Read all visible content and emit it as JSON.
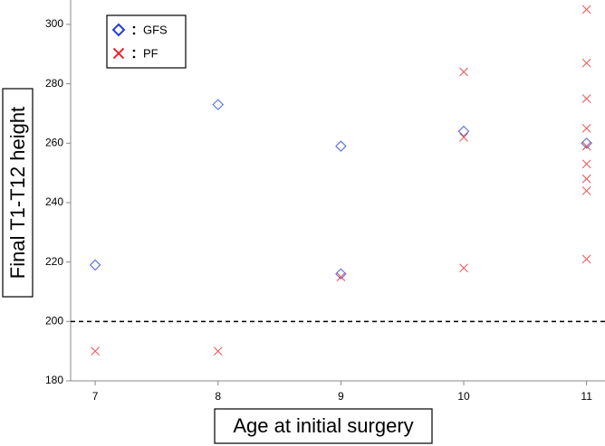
{
  "chart_data": {
    "type": "scatter",
    "x_label": "Age at initial surgery",
    "y_label": "Final T1-T12 height",
    "xlim": [
      6.8,
      11.15
    ],
    "ylim": [
      180,
      308.2
    ],
    "xticks": [
      7,
      8,
      9,
      10,
      11
    ],
    "yticks": [
      180,
      200,
      220,
      240,
      260,
      280,
      300
    ],
    "reference_line": {
      "y": 200,
      "style": "dashed",
      "color": "#000000"
    },
    "legend": "upper-left",
    "series": [
      {
        "name": "GFS",
        "color": "#1f3fd6",
        "marker": "diamond",
        "x": [
          7,
          8,
          9,
          9,
          10,
          11
        ],
        "values": [
          219,
          273,
          259,
          216,
          264,
          260
        ]
      },
      {
        "name": "PF",
        "color": "#e8262b",
        "marker": "x",
        "x": [
          7,
          8,
          9,
          10,
          10,
          10,
          11,
          11,
          11,
          11,
          11,
          11,
          11,
          11,
          11
        ],
        "values": [
          190,
          190,
          215,
          284,
          262,
          218,
          305,
          287,
          275,
          265,
          259,
          253,
          248,
          244,
          221
        ]
      }
    ]
  }
}
